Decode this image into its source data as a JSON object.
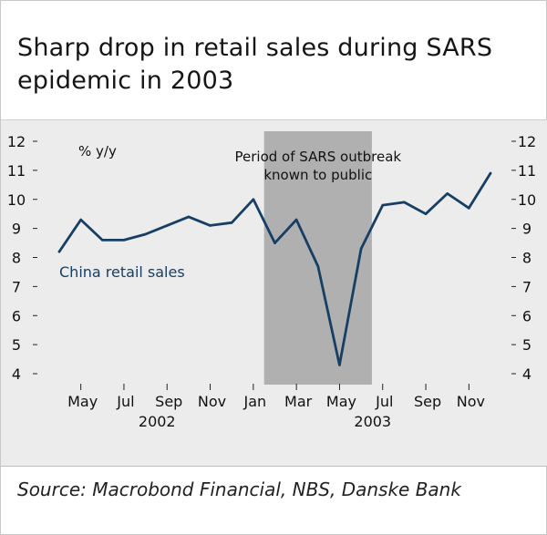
{
  "title": "Sharp drop in retail sales during SARS epidemic in 2003",
  "source": "Source: Macrobond Financial, NBS, Danske Bank",
  "colors": {
    "line": "#173e63",
    "shade": "#b0b0b0",
    "chart_bg": "#ececec"
  },
  "chart_data": {
    "type": "line",
    "title": "Sharp drop in retail sales during SARS epidemic in 2003",
    "ylabel": "% y/y",
    "ylim": [
      4,
      12
    ],
    "yticks": [
      4,
      5,
      6,
      7,
      8,
      9,
      10,
      11,
      12
    ],
    "x": [
      "2002-04",
      "2002-05",
      "2002-06",
      "2002-07",
      "2002-08",
      "2002-09",
      "2002-10",
      "2002-11",
      "2002-12",
      "2003-01",
      "2003-02",
      "2003-03",
      "2003-04",
      "2003-05",
      "2003-06",
      "2003-07",
      "2003-08",
      "2003-09",
      "2003-10",
      "2003-11",
      "2003-12"
    ],
    "x_tick_labels": [
      {
        "month": "2002-05",
        "label": "May"
      },
      {
        "month": "2002-07",
        "label": "Jul"
      },
      {
        "month": "2002-09",
        "label": "Sep"
      },
      {
        "month": "2002-11",
        "label": "Nov"
      },
      {
        "month": "2003-01",
        "label": "Jan"
      },
      {
        "month": "2003-03",
        "label": "Mar"
      },
      {
        "month": "2003-05",
        "label": "May"
      },
      {
        "month": "2003-07",
        "label": "Jul"
      },
      {
        "month": "2003-09",
        "label": "Sep"
      },
      {
        "month": "2003-11",
        "label": "Nov"
      }
    ],
    "year_labels": [
      {
        "label": "2002",
        "month": "2002-09"
      },
      {
        "label": "2003",
        "month": "2003-07"
      }
    ],
    "series": [
      {
        "name": "China retail sales",
        "values": [
          8.2,
          9.3,
          8.6,
          8.6,
          8.8,
          9.1,
          9.4,
          9.1,
          9.2,
          10.0,
          8.5,
          9.3,
          7.7,
          4.3,
          8.3,
          9.8,
          9.9,
          9.5,
          10.2,
          9.7,
          10.9
        ]
      }
    ],
    "shaded_period": {
      "start": "2003-02",
      "end": "2003-07",
      "label_line1": "Period of SARS outbreak",
      "label_line2": "known to public"
    }
  }
}
